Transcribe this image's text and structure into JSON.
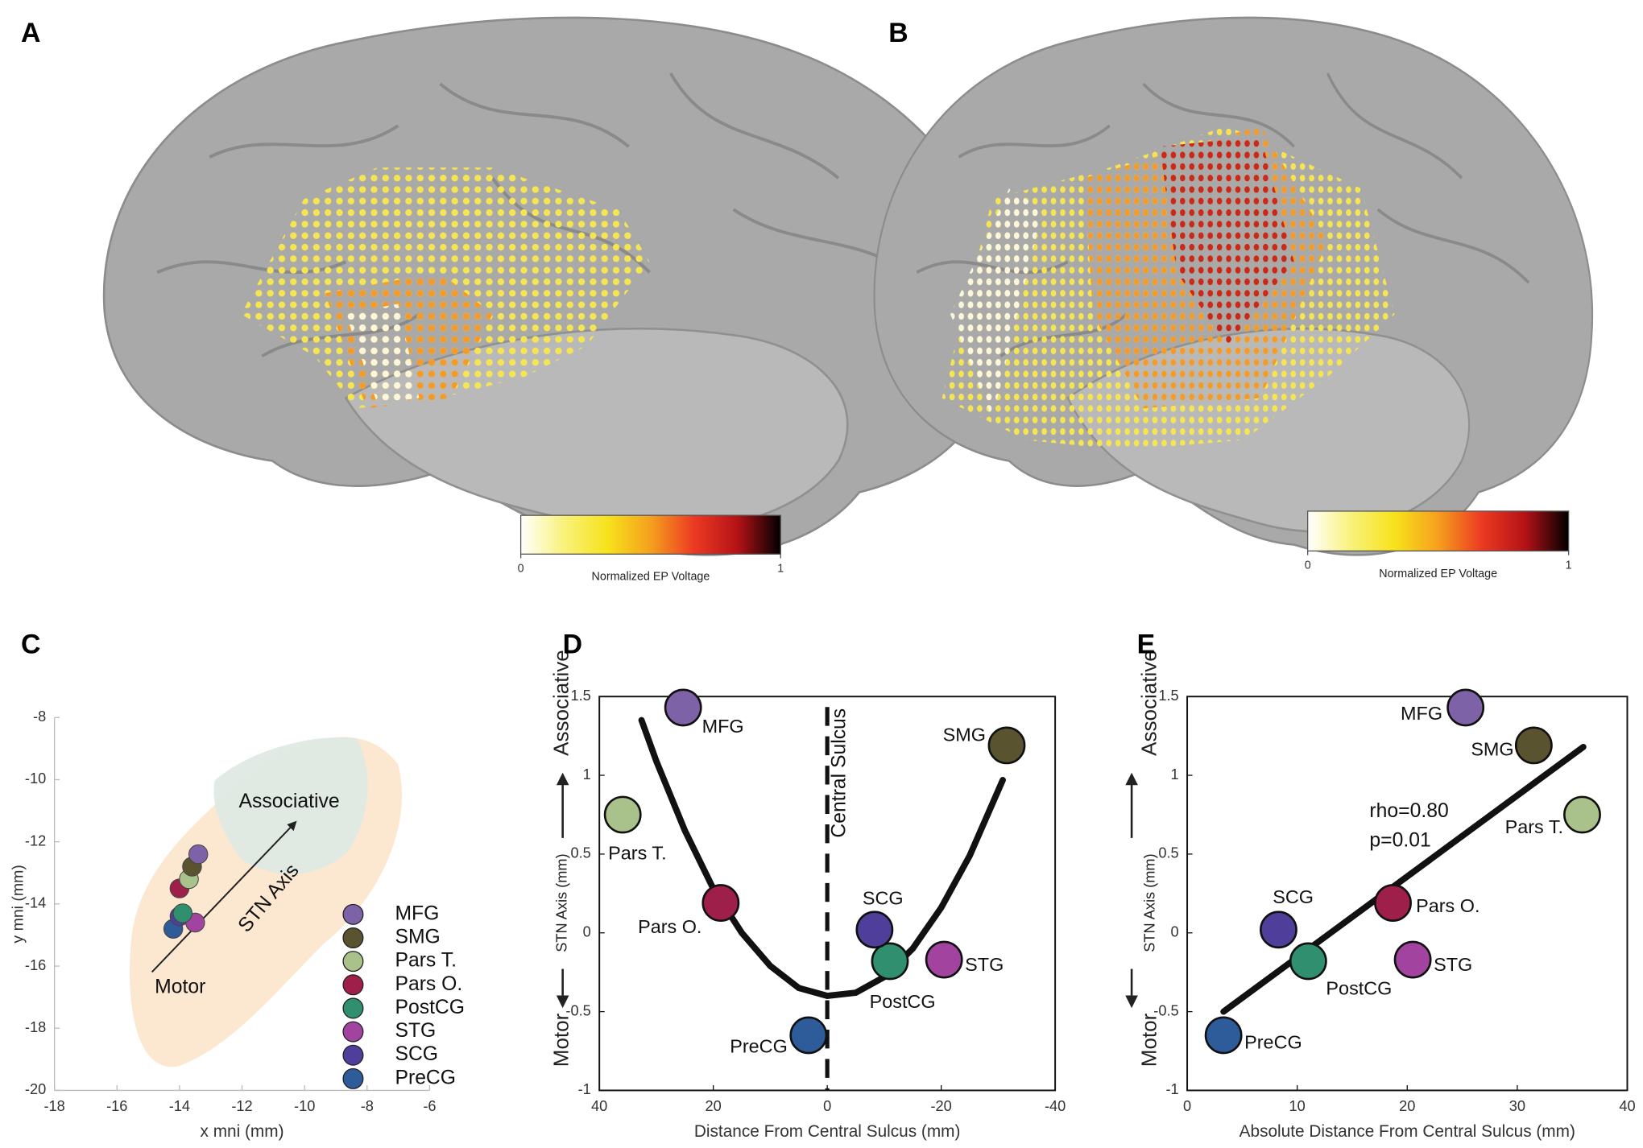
{
  "chart_data": [
    {
      "type": "colorbar",
      "panel": "A",
      "label": "Normalized EP Voltage",
      "xlim": [
        0,
        1
      ],
      "xticks": [
        0,
        1
      ],
      "colors": [
        "#ffffff",
        "#f9f27a",
        "#f7e21c",
        "#f5a01d",
        "#ec3a22",
        "#b51217",
        "#000000"
      ]
    },
    {
      "type": "colorbar",
      "panel": "B",
      "label": "Normalized EP Voltage",
      "xlim": [
        0,
        1
      ],
      "xticks": [
        0,
        1
      ],
      "colors": [
        "#ffffff",
        "#f9f27a",
        "#f7e21c",
        "#f5a01d",
        "#ec3a22",
        "#b51217",
        "#000000"
      ]
    },
    {
      "type": "scatter",
      "panel": "C",
      "xlabel": "x mni (mm)",
      "ylabel": "y mni (mm)",
      "xlim": [
        -18,
        -6
      ],
      "ylim": [
        -20,
        -8
      ],
      "xticks": [
        -18,
        -16,
        -14,
        -12,
        -10,
        -8,
        -6
      ],
      "yticks": [
        -20,
        -18,
        -16,
        -14,
        -12,
        -10,
        -8
      ],
      "categories": [
        "MFG",
        "SMG",
        "Pars T.",
        "Pars O.",
        "PostCG",
        "STG",
        "SCG",
        "PreCG"
      ],
      "colors": [
        "#7d62a8",
        "#5a5330",
        "#a9c18a",
        "#9e1f4a",
        "#2f8f6e",
        "#a2449f",
        "#4f3f9a",
        "#2e5b9a"
      ],
      "x": [
        -13.4,
        -13.6,
        -13.7,
        -14.0,
        -13.9,
        -13.5,
        -14.0,
        -14.2
      ],
      "values": [
        -12.4,
        -12.8,
        -13.2,
        -13.5,
        -14.3,
        -14.6,
        -14.4,
        -14.8
      ],
      "annotations": [
        "Associative",
        "STN Axis",
        "Motor"
      ]
    },
    {
      "type": "scatter",
      "panel": "D",
      "xlabel": "Distance From Central Sulcus (mm)",
      "ylabel": "STN Axis (mm)",
      "ylabel_low": "Motor",
      "ylabel_high": "Associative",
      "xlim": [
        40,
        -40
      ],
      "ylim": [
        -1,
        1.5
      ],
      "xticks": [
        40,
        20,
        0,
        -20,
        -40
      ],
      "yticks": [
        -1,
        -0.5,
        0,
        0.5,
        1,
        1.5
      ],
      "categories": [
        "MFG",
        "SMG",
        "Pars T.",
        "Pars O.",
        "PostCG",
        "STG",
        "SCG",
        "PreCG"
      ],
      "colors": [
        "#7d62a8",
        "#5a5330",
        "#a9c18a",
        "#9e1f4a",
        "#2f8f6e",
        "#a2449f",
        "#4f3f9a",
        "#2e5b9a"
      ],
      "x": [
        25.3,
        -31.5,
        35.9,
        18.7,
        -11,
        -20.5,
        -8.3,
        3.3
      ],
      "values": [
        1.43,
        1.19,
        0.75,
        0.19,
        -0.18,
        -0.17,
        0.02,
        -0.65
      ],
      "fit": {
        "x": [
          32.6,
          30,
          25,
          20,
          15,
          10,
          5,
          0,
          -5,
          -10,
          -15,
          -20,
          -25,
          -30.8
        ],
        "values": [
          1.35,
          1.09,
          0.65,
          0.28,
          0,
          -0.21,
          -0.35,
          -0.4,
          -0.38,
          -0.28,
          -0.1,
          0.16,
          0.49,
          0.97
        ]
      },
      "vline": {
        "x": 0,
        "label": "Central Sulcus"
      }
    },
    {
      "type": "scatter",
      "panel": "E",
      "xlabel": "Absolute Distance From Central Sulcus (mm)",
      "ylabel": "STN Axis (mm)",
      "ylabel_low": "Motor",
      "ylabel_high": "Associative",
      "xlim": [
        0,
        40
      ],
      "ylim": [
        -1,
        1.5
      ],
      "xticks": [
        0,
        10,
        20,
        30,
        40
      ],
      "yticks": [
        -1,
        -0.5,
        0,
        0.5,
        1,
        1.5
      ],
      "categories": [
        "MFG",
        "SMG",
        "Pars T.",
        "Pars O.",
        "PostCG",
        "STG",
        "SCG",
        "PreCG"
      ],
      "colors": [
        "#7d62a8",
        "#5a5330",
        "#a9c18a",
        "#9e1f4a",
        "#2f8f6e",
        "#a2449f",
        "#4f3f9a",
        "#2e5b9a"
      ],
      "x": [
        25.3,
        31.5,
        35.9,
        18.7,
        11,
        20.5,
        8.3,
        3.3
      ],
      "values": [
        1.43,
        1.19,
        0.75,
        0.19,
        -0.18,
        -0.17,
        0.02,
        -0.65
      ],
      "fit": {
        "x": [
          3.3,
          36
        ],
        "values": [
          -0.5,
          1.18
        ]
      },
      "annotations": [
        "rho=0.80",
        "p=0.01"
      ]
    }
  ]
}
